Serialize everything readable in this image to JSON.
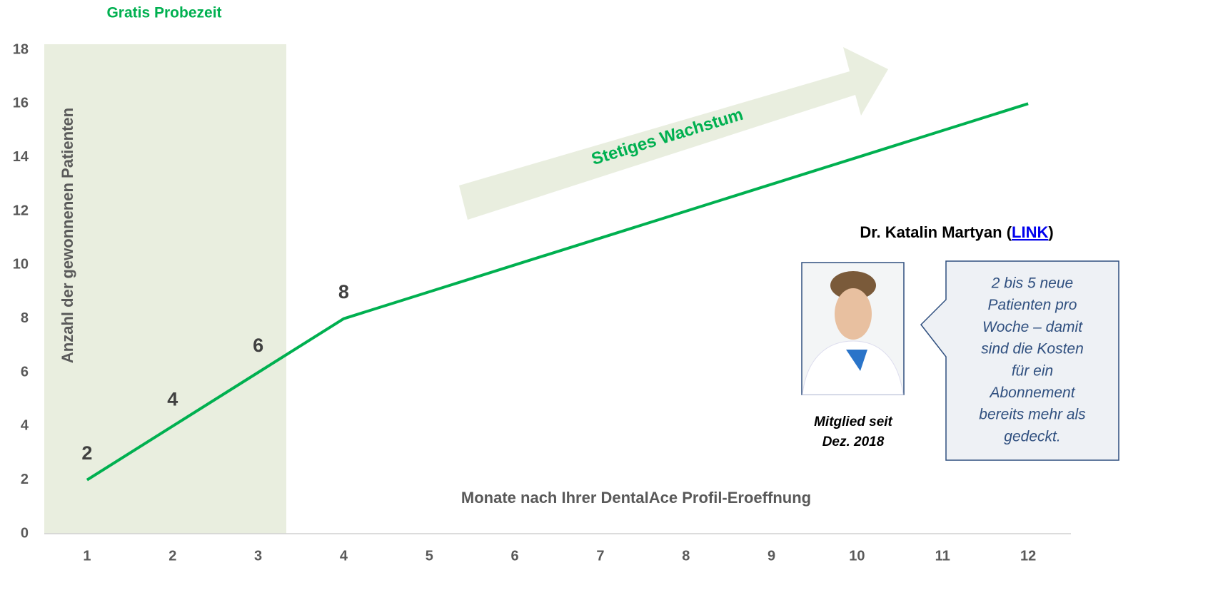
{
  "chart_data": {
    "type": "line",
    "title": "Gratis Probezeit",
    "x_label": "Monate nach Ihrer DentalAce Profil-Eroeffnung",
    "y_label": "Anzahl der gewonnenen Patienten",
    "categories": [
      "1",
      "2",
      "3",
      "4",
      "5",
      "6",
      "7",
      "8",
      "9",
      "10",
      "11",
      "12"
    ],
    "values": [
      2,
      4,
      6,
      8,
      9,
      10,
      11,
      12,
      13,
      14,
      15,
      16
    ],
    "value_labels": [
      "2",
      "4",
      "6",
      "8",
      null,
      null,
      null,
      null,
      null,
      null,
      null,
      null
    ],
    "color": "#00b050",
    "ylim": [
      0,
      18
    ],
    "yticks": [
      0,
      2,
      4,
      6,
      8,
      10,
      12,
      14,
      16,
      18
    ],
    "grid": false,
    "arrow_label": "Stetiges Wachstum",
    "profile": {
      "name_prefix": "Dr. Katalin Martyan (",
      "link": "LINK",
      "name_suffix": ")",
      "member_since": [
        "Mitglied seit",
        "Dez. 2018"
      ],
      "quote": [
        "2 bis 5 neue",
        "Patienten pro",
        "Woche – damit",
        "sind die Kosten",
        "für ein",
        "Abonnement",
        "bereits mehr als",
        "gedeckt."
      ]
    }
  }
}
